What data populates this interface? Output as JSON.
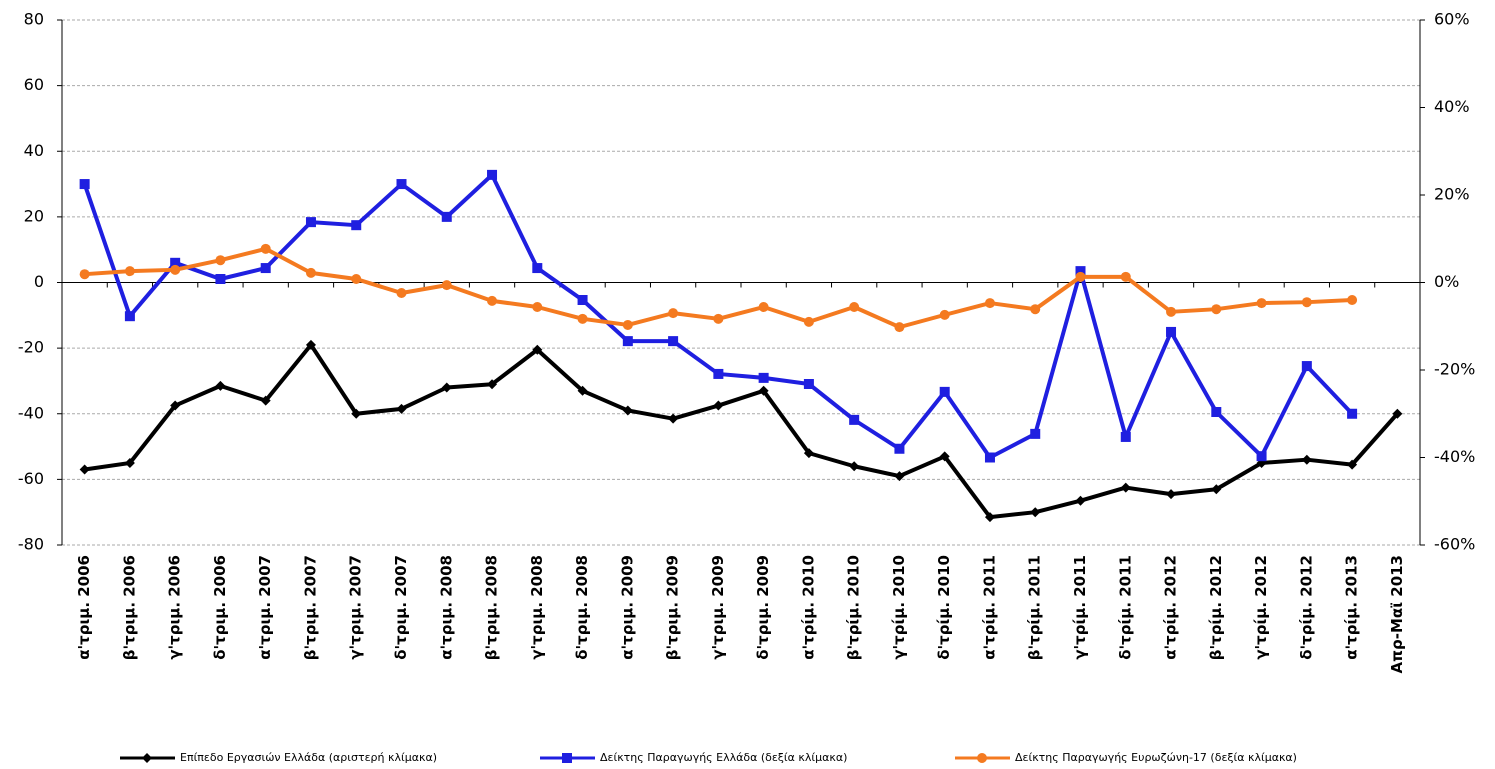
{
  "chart_data": {
    "type": "line",
    "categories": [
      "α'τριμ. 2006",
      "β'τριμ. 2006",
      "γ'τριμ. 2006",
      "δ'τριμ. 2006",
      "α'τριμ. 2007",
      "β'τριμ. 2007",
      "γ'τριμ. 2007",
      "δ'τριμ. 2007",
      "α'τριμ. 2008",
      "β'τριμ. 2008",
      "γ'τριμ. 2008",
      "δ'τριμ. 2008",
      "α'τριμ. 2009",
      "β'τριμ. 2009",
      "γ'τριμ. 2009",
      "δ'τριμ. 2009",
      "α'τρίμ. 2010",
      "β'τρίμ. 2010",
      "γ'τρίμ. 2010",
      "δ'τρίμ. 2010",
      "α'τρίμ. 2011",
      "β'τρίμ. 2011",
      "γ'τρίμ. 2011",
      "δ'τρίμ. 2011",
      "α'τρίμ. 2012",
      "β'τρίμ. 2012",
      "γ'τρίμ. 2012",
      "δ'τρίμ. 2012",
      "α'τρίμ. 2013",
      "Απρ-Μαϊ 2013"
    ],
    "series": [
      {
        "name": "Επίπεδο Εργασιών Ελλάδα (αριστερή κλίμακα)",
        "color": "#000000",
        "marker": "diamond",
        "values": [
          -57,
          -55,
          -37.5,
          -31.5,
          -36,
          -19,
          -40,
          -38.5,
          -32,
          -31,
          -20.5,
          -33,
          -39,
          -41.5,
          -37.5,
          -33,
          -52,
          -56,
          -59,
          -53,
          -71.5,
          -70,
          -66.5,
          -62.5,
          -64.5,
          -63,
          -55,
          -54,
          -55.5,
          -40
        ]
      },
      {
        "name": "Δείκτης Παραγωγής Ελλάδα (δεξία κλίμακα)",
        "color": "#1f1fe0",
        "marker": "square",
        "axis": "y2",
        "values": [
          22.5,
          -7.7,
          4.5,
          0.8,
          3.3,
          13.8,
          13.1,
          22.5,
          15,
          24.6,
          3.3,
          -4,
          -13.4,
          -13.4,
          -20.9,
          -21.8,
          -23.2,
          -31.4,
          -38,
          -25,
          -40,
          -34.6,
          2.6,
          -35.3,
          -11.3,
          -29.6,
          -39.7,
          -19.1,
          -30,
          null
        ]
      },
      {
        "name": "Δείκτης Παραγωγής Ευρωζώνη-17 (δεξία κλίμακα)",
        "color": "#f47a20",
        "marker": "circle",
        "axis": "y2",
        "values": [
          1.9,
          2.6,
          2.9,
          5.1,
          7.7,
          2.2,
          0.8,
          -2.4,
          -0.6,
          -4.2,
          -5.6,
          -8.3,
          -9.7,
          -7,
          -8.3,
          -5.6,
          -9,
          -5.6,
          -10.2,
          -7.4,
          -4.7,
          -6.1,
          1.3,
          1.3,
          -6.7,
          -6.1,
          -4.7,
          -4.5,
          -4,
          null
        ]
      }
    ],
    "ylim": [
      -80,
      80
    ],
    "yticks": [
      -80,
      -60,
      -40,
      -20,
      0,
      20,
      40,
      60,
      80
    ],
    "y2lim": [
      -60,
      60
    ],
    "y2ticks": [
      {
        "value": -60,
        "label": "-60%"
      },
      {
        "value": -40,
        "label": "-40%"
      },
      {
        "value": -20,
        "label": "-20%"
      },
      {
        "value": 0,
        "label": "0%"
      },
      {
        "value": 20,
        "label": "20%"
      },
      {
        "value": 40,
        "label": "40%"
      },
      {
        "value": 60,
        "label": "60%"
      }
    ],
    "grid": true,
    "legend": "bottom"
  }
}
